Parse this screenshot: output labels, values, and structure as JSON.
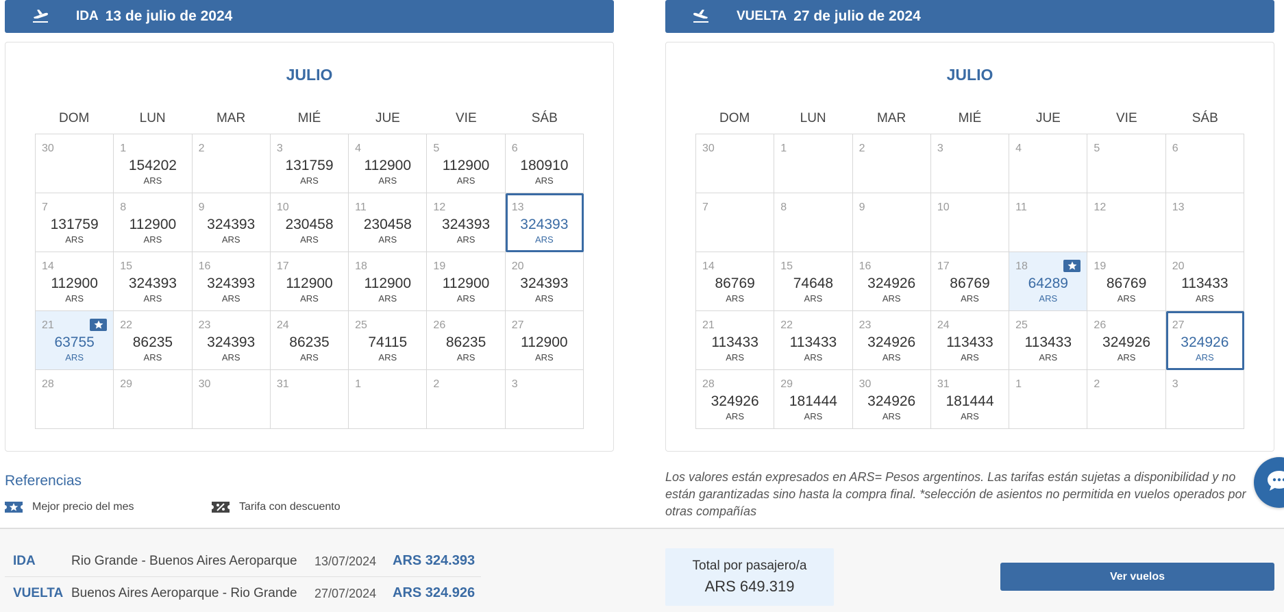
{
  "ida": {
    "type": "IDA",
    "date": "13 de julio de 2024",
    "month": "JULIO",
    "days_of_week": [
      "DOM",
      "LUN",
      "MAR",
      "MIÉ",
      "JUE",
      "VIE",
      "SÁB"
    ],
    "cells": [
      {
        "day": "30",
        "price": ""
      },
      {
        "day": "1",
        "price": "154202"
      },
      {
        "day": "2",
        "price": ""
      },
      {
        "day": "3",
        "price": "131759"
      },
      {
        "day": "4",
        "price": "112900"
      },
      {
        "day": "5",
        "price": "112900"
      },
      {
        "day": "6",
        "price": "180910"
      },
      {
        "day": "7",
        "price": "131759"
      },
      {
        "day": "8",
        "price": "112900"
      },
      {
        "day": "9",
        "price": "324393"
      },
      {
        "day": "10",
        "price": "230458"
      },
      {
        "day": "11",
        "price": "230458"
      },
      {
        "day": "12",
        "price": "324393"
      },
      {
        "day": "13",
        "price": "324393",
        "selected": true
      },
      {
        "day": "14",
        "price": "112900"
      },
      {
        "day": "15",
        "price": "324393"
      },
      {
        "day": "16",
        "price": "324393"
      },
      {
        "day": "17",
        "price": "112900"
      },
      {
        "day": "18",
        "price": "112900"
      },
      {
        "day": "19",
        "price": "112900"
      },
      {
        "day": "20",
        "price": "324393"
      },
      {
        "day": "21",
        "price": "63755",
        "best": true
      },
      {
        "day": "22",
        "price": "86235"
      },
      {
        "day": "23",
        "price": "324393"
      },
      {
        "day": "24",
        "price": "86235"
      },
      {
        "day": "25",
        "price": "74115"
      },
      {
        "day": "26",
        "price": "86235"
      },
      {
        "day": "27",
        "price": "112900"
      },
      {
        "day": "28",
        "price": ""
      },
      {
        "day": "29",
        "price": ""
      },
      {
        "day": "30",
        "price": ""
      },
      {
        "day": "31",
        "price": ""
      },
      {
        "day": "1",
        "price": ""
      },
      {
        "day": "2",
        "price": ""
      },
      {
        "day": "3",
        "price": ""
      }
    ]
  },
  "vuelta": {
    "type": "VUELTA",
    "date": "27 de julio de 2024",
    "month": "JULIO",
    "days_of_week": [
      "DOM",
      "LUN",
      "MAR",
      "MIÉ",
      "JUE",
      "VIE",
      "SÁB"
    ],
    "cells": [
      {
        "day": "30",
        "price": ""
      },
      {
        "day": "1",
        "price": ""
      },
      {
        "day": "2",
        "price": ""
      },
      {
        "day": "3",
        "price": ""
      },
      {
        "day": "4",
        "price": ""
      },
      {
        "day": "5",
        "price": ""
      },
      {
        "day": "6",
        "price": ""
      },
      {
        "day": "7",
        "price": ""
      },
      {
        "day": "8",
        "price": ""
      },
      {
        "day": "9",
        "price": ""
      },
      {
        "day": "10",
        "price": ""
      },
      {
        "day": "11",
        "price": ""
      },
      {
        "day": "12",
        "price": ""
      },
      {
        "day": "13",
        "price": ""
      },
      {
        "day": "14",
        "price": "86769"
      },
      {
        "day": "15",
        "price": "74648"
      },
      {
        "day": "16",
        "price": "324926"
      },
      {
        "day": "17",
        "price": "86769"
      },
      {
        "day": "18",
        "price": "64289",
        "best": true
      },
      {
        "day": "19",
        "price": "86769"
      },
      {
        "day": "20",
        "price": "113433"
      },
      {
        "day": "21",
        "price": "113433"
      },
      {
        "day": "22",
        "price": "113433"
      },
      {
        "day": "23",
        "price": "324926"
      },
      {
        "day": "24",
        "price": "113433"
      },
      {
        "day": "25",
        "price": "113433"
      },
      {
        "day": "26",
        "price": "324926"
      },
      {
        "day": "27",
        "price": "324926",
        "selected": true
      },
      {
        "day": "28",
        "price": "324926"
      },
      {
        "day": "29",
        "price": "181444"
      },
      {
        "day": "30",
        "price": "324926"
      },
      {
        "day": "31",
        "price": "181444"
      },
      {
        "day": "1",
        "price": ""
      },
      {
        "day": "2",
        "price": ""
      },
      {
        "day": "3",
        "price": ""
      }
    ]
  },
  "currency_label": "ARS",
  "references": {
    "title": "Referencias",
    "best_price": "Mejor precio del mes",
    "discount": "Tarifa con descuento"
  },
  "disclaimer": "Los valores están expresados en ARS= Pesos argentinos. Las tarifas están sujetas a disponibilidad y no están garantizadas sino hasta la compra final. *selección de asientos no permitida en vuelos operados por otras compañías",
  "summary": {
    "ida": {
      "label": "IDA",
      "route": "Rio Grande - Buenos Aires Aeroparque",
      "date": "13/07/2024",
      "amount": "ARS 324.393"
    },
    "vuelta": {
      "label": "VUELTA",
      "route": "Buenos Aires Aeroparque - Rio Grande",
      "date": "27/07/2024",
      "amount": "ARS 324.926"
    },
    "total_label": "Total por pasajero/a",
    "total_value": "ARS 649.319",
    "cta_label": "Ver vuelos"
  },
  "colors": {
    "primary": "#3a6ba4",
    "best_bg": "#e8f2fc",
    "chat": "#2e6aa9"
  },
  "icons": {
    "ida_header": "plane-departure-icon",
    "vuelta_header": "plane-arrival-icon",
    "best_price": "star-ticket-icon",
    "discount": "discount-ticket-icon",
    "chat": "chat-bubble-icon"
  }
}
